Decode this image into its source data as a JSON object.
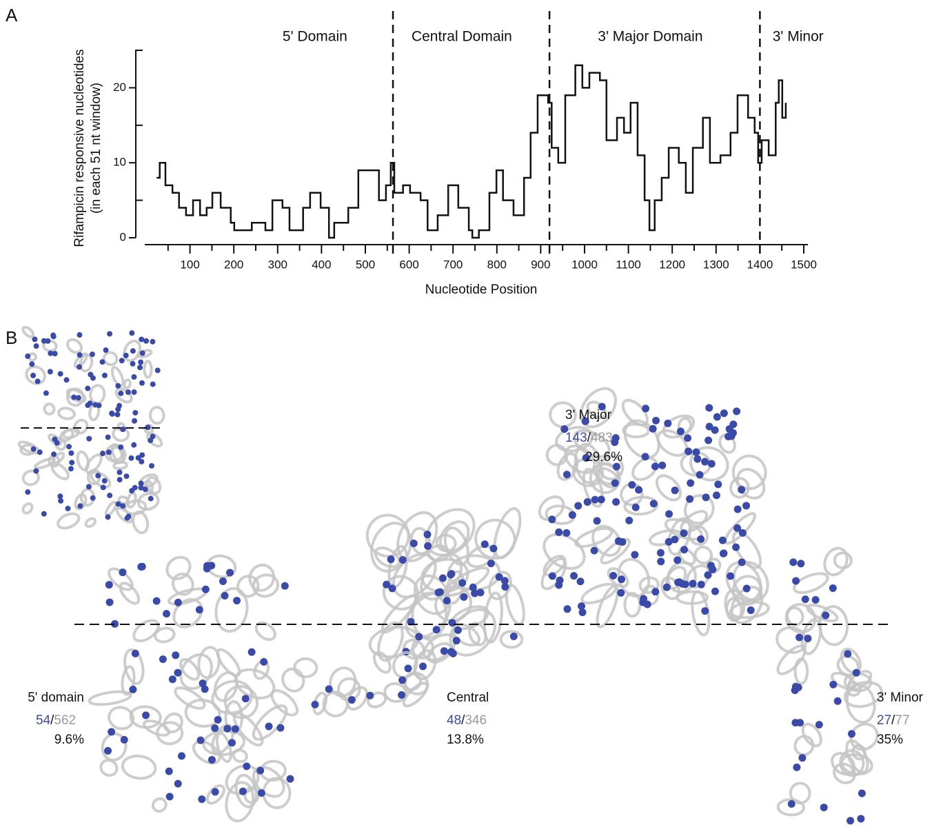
{
  "chart_data": {
    "type": "line",
    "panel_label": "A",
    "x_label": "Nucleotide Position",
    "y_label": [
      "Rifampicin responsive nucleotides",
      "(in each 51 nt window)"
    ],
    "xlim": [
      0,
      1500
    ],
    "ylim": [
      0,
      25
    ],
    "xticks": [
      100,
      200,
      300,
      400,
      500,
      600,
      700,
      800,
      900,
      1000,
      1100,
      1200,
      1300,
      1400,
      1500
    ],
    "x_minor_ticks": [
      50,
      150,
      250,
      350,
      450,
      550,
      650,
      750,
      850,
      950,
      1050,
      1150,
      1250,
      1350,
      1450
    ],
    "yticks": [
      0,
      10,
      20
    ],
    "y_minor_ticks": [
      5,
      15,
      25
    ],
    "step": true,
    "color": "#111111",
    "x": [
      24,
      31,
      44,
      60,
      75,
      91,
      107,
      123,
      138,
      151,
      170,
      193,
      201,
      241,
      272,
      288,
      311,
      327,
      358,
      374,
      398,
      417,
      429,
      461,
      484,
      508,
      531,
      547,
      558,
      566,
      586,
      602,
      626,
      642,
      665,
      689,
      712,
      736,
      744,
      759,
      783,
      799,
      814,
      838,
      862,
      877,
      893,
      917,
      925,
      940,
      956,
      979,
      995,
      1011,
      1035,
      1050,
      1074,
      1090,
      1105,
      1121,
      1137,
      1148,
      1160,
      1176,
      1192,
      1215,
      1231,
      1247,
      1270,
      1286,
      1310,
      1333,
      1349,
      1373,
      1388,
      1396,
      1404,
      1420,
      1436,
      1443,
      1451,
      1459
    ],
    "values": [
      8,
      10,
      7,
      6,
      4,
      3,
      5,
      3,
      4,
      6,
      4,
      2,
      1,
      2,
      1,
      5,
      4,
      1,
      4,
      6,
      4,
      0,
      2,
      4,
      9,
      9,
      5,
      7,
      10,
      6,
      7,
      6,
      5,
      1,
      3,
      7,
      4,
      1,
      0,
      1,
      6,
      9,
      5,
      3,
      8,
      14,
      19,
      18,
      12,
      10,
      19,
      23,
      20,
      22,
      21,
      13,
      16,
      14,
      18,
      11,
      5,
      1,
      5,
      8,
      12,
      10,
      6,
      12,
      16,
      10,
      11,
      14,
      19,
      16,
      14,
      10,
      13,
      11,
      18,
      21,
      16,
      18
    ],
    "boundaries": [
      563,
      920,
      1400
    ],
    "domains": [
      {
        "name": "5' Domain",
        "center": 385
      },
      {
        "name": "Central Domain",
        "center": 720
      },
      {
        "name": "3' Major Domain",
        "center": 1150
      },
      {
        "name": "3' Minor",
        "center": 1487
      }
    ]
  },
  "panel_b": {
    "panel_label": "B",
    "domains": [
      {
        "name": "5' domain",
        "responsive": 54,
        "separator": "/",
        "total": 562,
        "percent": "9.6%"
      },
      {
        "name": "Central",
        "responsive": 48,
        "separator": "/",
        "total": 346,
        "percent": "13.8%"
      },
      {
        "name": "3' Major",
        "responsive": 143,
        "separator": "/",
        "total": 483,
        "percent": "29.6%"
      },
      {
        "name": "3' Minor",
        "responsive": 27,
        "separator": "/",
        "total": 77,
        "percent": "35%"
      }
    ]
  }
}
